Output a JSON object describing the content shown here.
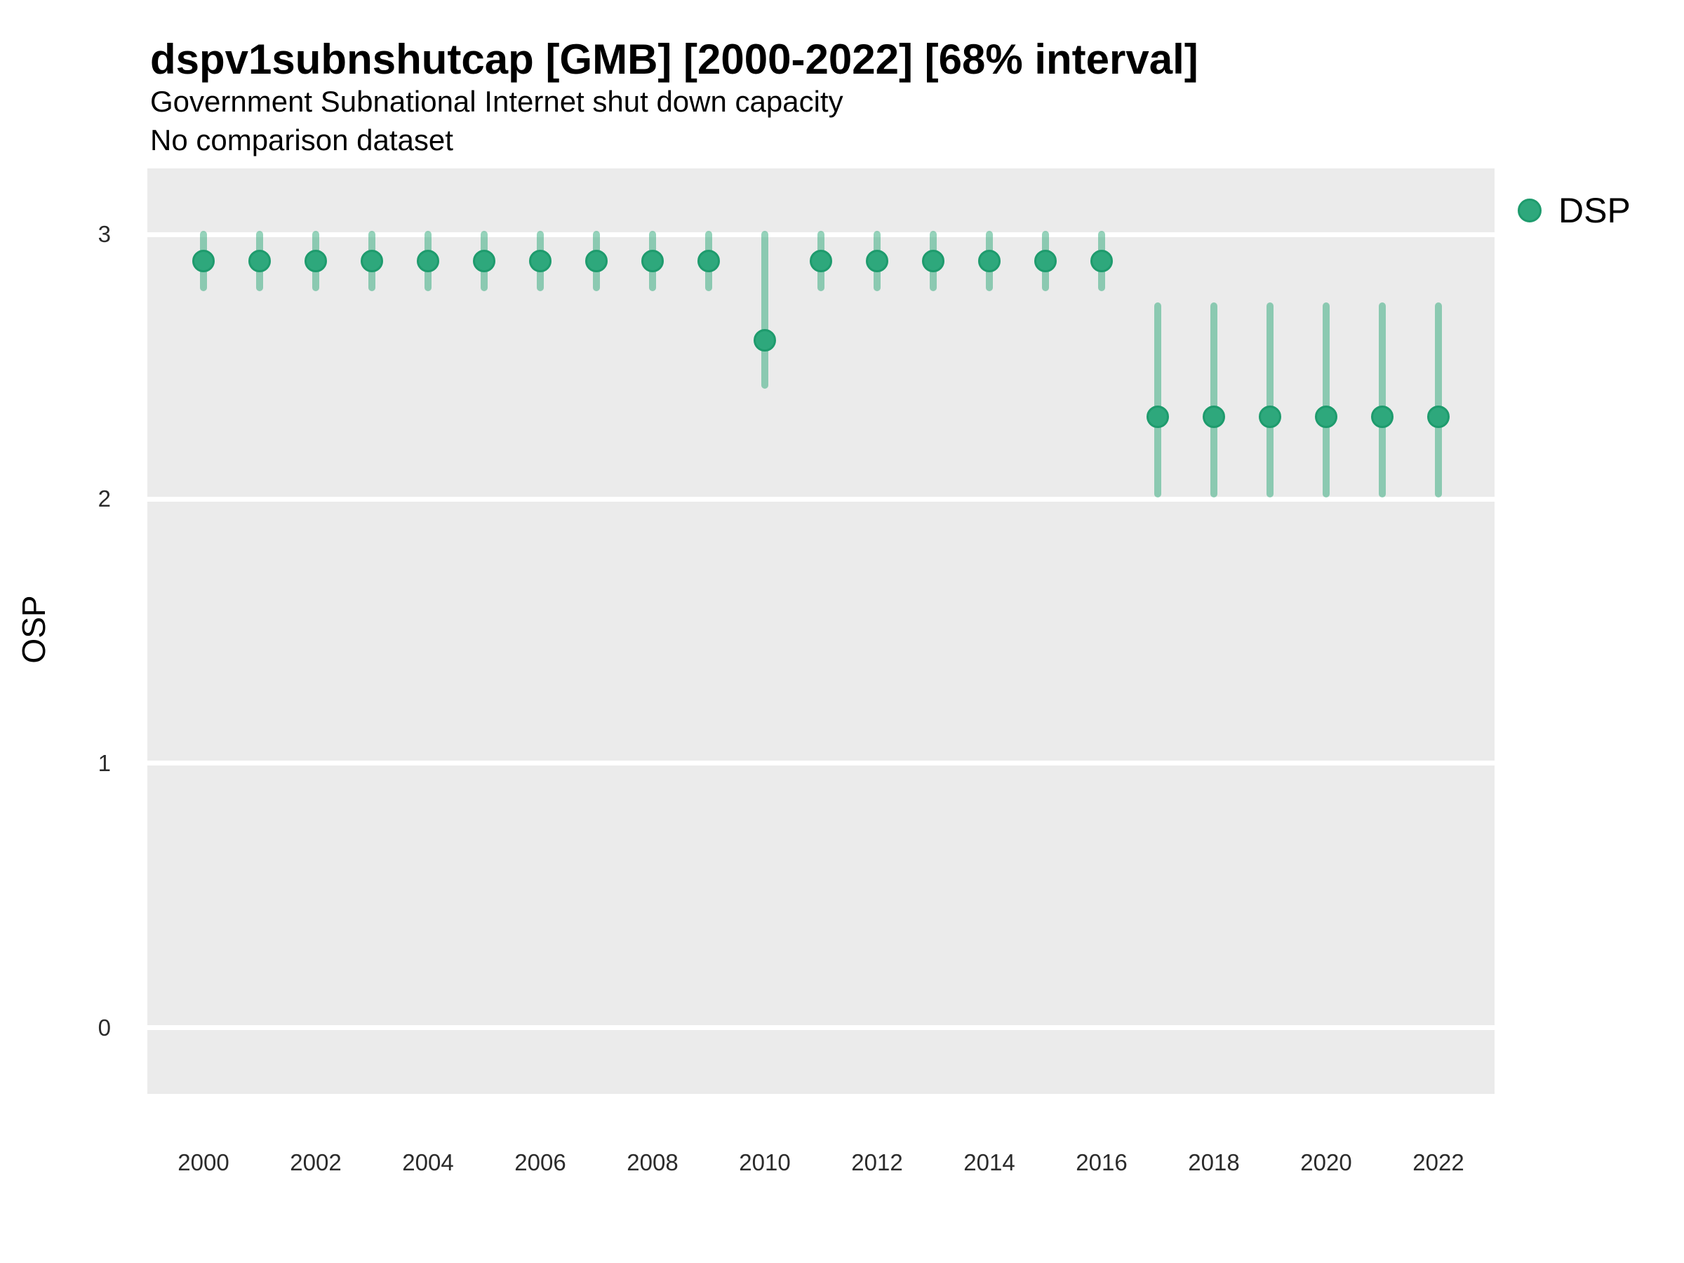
{
  "chart_data": {
    "type": "scatter",
    "title": "dspv1subnshutcap [GMB] [2000-2022] [68% interval]",
    "subtitle": "Government Subnational Internet shut down capacity",
    "note": "No comparison dataset",
    "xlabel": "",
    "ylabel": "OSP",
    "xlim": [
      1999,
      2023
    ],
    "ylim": [
      -0.25,
      3.25
    ],
    "x_ticks": [
      2000,
      2002,
      2004,
      2006,
      2008,
      2010,
      2012,
      2014,
      2016,
      2018,
      2020,
      2022
    ],
    "y_ticks": [
      0,
      1,
      2,
      3
    ],
    "grid": "horizontal-major-only",
    "legend_position": "right",
    "series": [
      {
        "name": "DSP",
        "interval_type": "68% interval",
        "points": [
          {
            "year": 2000,
            "value": 2.9,
            "lo": 2.8,
            "hi": 3.0
          },
          {
            "year": 2001,
            "value": 2.9,
            "lo": 2.8,
            "hi": 3.0
          },
          {
            "year": 2002,
            "value": 2.9,
            "lo": 2.8,
            "hi": 3.0
          },
          {
            "year": 2003,
            "value": 2.9,
            "lo": 2.8,
            "hi": 3.0
          },
          {
            "year": 2004,
            "value": 2.9,
            "lo": 2.8,
            "hi": 3.0
          },
          {
            "year": 2005,
            "value": 2.9,
            "lo": 2.8,
            "hi": 3.0
          },
          {
            "year": 2006,
            "value": 2.9,
            "lo": 2.8,
            "hi": 3.0
          },
          {
            "year": 2007,
            "value": 2.9,
            "lo": 2.8,
            "hi": 3.0
          },
          {
            "year": 2008,
            "value": 2.9,
            "lo": 2.8,
            "hi": 3.0
          },
          {
            "year": 2009,
            "value": 2.9,
            "lo": 2.8,
            "hi": 3.0
          },
          {
            "year": 2010,
            "value": 2.6,
            "lo": 2.43,
            "hi": 3.0
          },
          {
            "year": 2011,
            "value": 2.9,
            "lo": 2.8,
            "hi": 3.0
          },
          {
            "year": 2012,
            "value": 2.9,
            "lo": 2.8,
            "hi": 3.0
          },
          {
            "year": 2013,
            "value": 2.9,
            "lo": 2.8,
            "hi": 3.0
          },
          {
            "year": 2014,
            "value": 2.9,
            "lo": 2.8,
            "hi": 3.0
          },
          {
            "year": 2015,
            "value": 2.9,
            "lo": 2.8,
            "hi": 3.0
          },
          {
            "year": 2016,
            "value": 2.9,
            "lo": 2.8,
            "hi": 3.0
          },
          {
            "year": 2017,
            "value": 2.31,
            "lo": 2.02,
            "hi": 2.73
          },
          {
            "year": 2018,
            "value": 2.31,
            "lo": 2.02,
            "hi": 2.73
          },
          {
            "year": 2019,
            "value": 2.31,
            "lo": 2.02,
            "hi": 2.73
          },
          {
            "year": 2020,
            "value": 2.31,
            "lo": 2.02,
            "hi": 2.73
          },
          {
            "year": 2021,
            "value": 2.31,
            "lo": 2.02,
            "hi": 2.73
          },
          {
            "year": 2022,
            "value": 2.31,
            "lo": 2.02,
            "hi": 2.73
          }
        ]
      }
    ],
    "colors": {
      "point_fill": "#2ea87c",
      "point_border": "#1e9b6d",
      "interval": "rgba(44,167,119,0.5)",
      "panel_background": "#ebebeb",
      "gridline": "#ffffff",
      "text": "#000000",
      "tick_text": "#2b2b2b"
    }
  },
  "legend": {
    "items": [
      {
        "label": "DSP",
        "color": "#2ea87c"
      }
    ]
  }
}
